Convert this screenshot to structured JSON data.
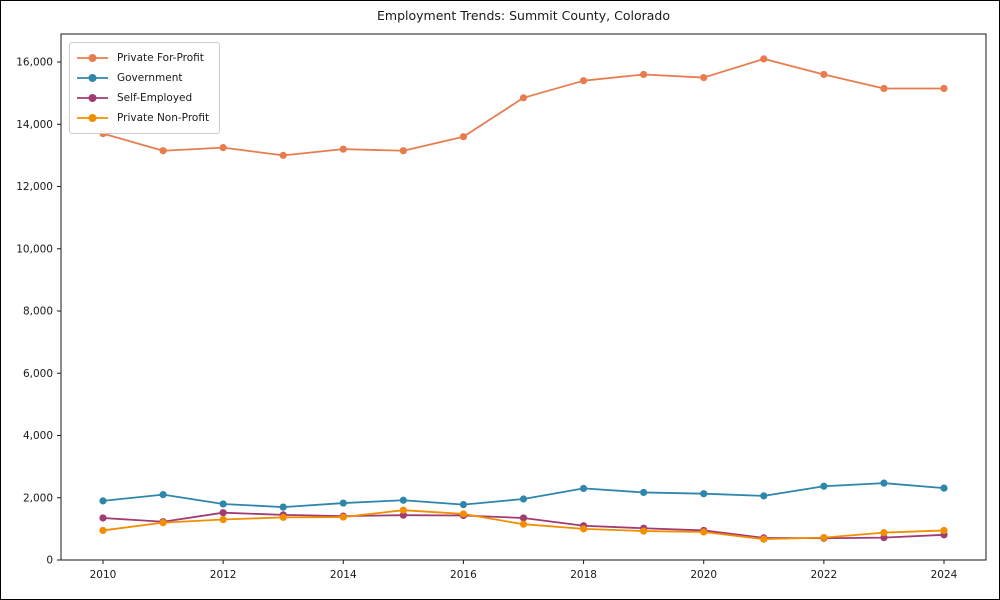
{
  "chart_data": {
    "type": "line",
    "title": "Employment Trends: Summit County, Colorado",
    "xlabel": "",
    "ylabel": "",
    "x": [
      2010,
      2011,
      2012,
      2013,
      2014,
      2015,
      2016,
      2017,
      2018,
      2019,
      2020,
      2021,
      2022,
      2023,
      2024
    ],
    "series": [
      {
        "name": "Private For-Profit",
        "color": "#E87C4F",
        "values": [
          13700,
          13150,
          13250,
          13000,
          13200,
          13150,
          13600,
          14850,
          15400,
          15600,
          15500,
          16100,
          15600,
          15150,
          15150
        ]
      },
      {
        "name": "Government",
        "color": "#2E86AB",
        "values": [
          1900,
          2100,
          1800,
          1700,
          1830,
          1920,
          1780,
          1960,
          2300,
          2170,
          2130,
          2060,
          2370,
          2470,
          2310
        ]
      },
      {
        "name": "Self-Employed",
        "color": "#A23B72",
        "values": [
          1350,
          1230,
          1520,
          1450,
          1410,
          1440,
          1430,
          1350,
          1100,
          1020,
          950,
          710,
          700,
          720,
          810
        ]
      },
      {
        "name": "Private Non-Profit",
        "color": "#F18F01",
        "values": [
          950,
          1200,
          1300,
          1370,
          1380,
          1600,
          1480,
          1150,
          1000,
          930,
          900,
          670,
          720,
          880,
          950
        ]
      }
    ],
    "xticks": [
      2010,
      2012,
      2014,
      2016,
      2018,
      2020,
      2022,
      2024
    ],
    "yticks": [
      0,
      2000,
      4000,
      6000,
      8000,
      10000,
      12000,
      14000,
      16000
    ],
    "ylim": [
      0,
      16900
    ],
    "grid": false,
    "legend_position": "upper left",
    "axis_color": "#1a1a1a"
  }
}
